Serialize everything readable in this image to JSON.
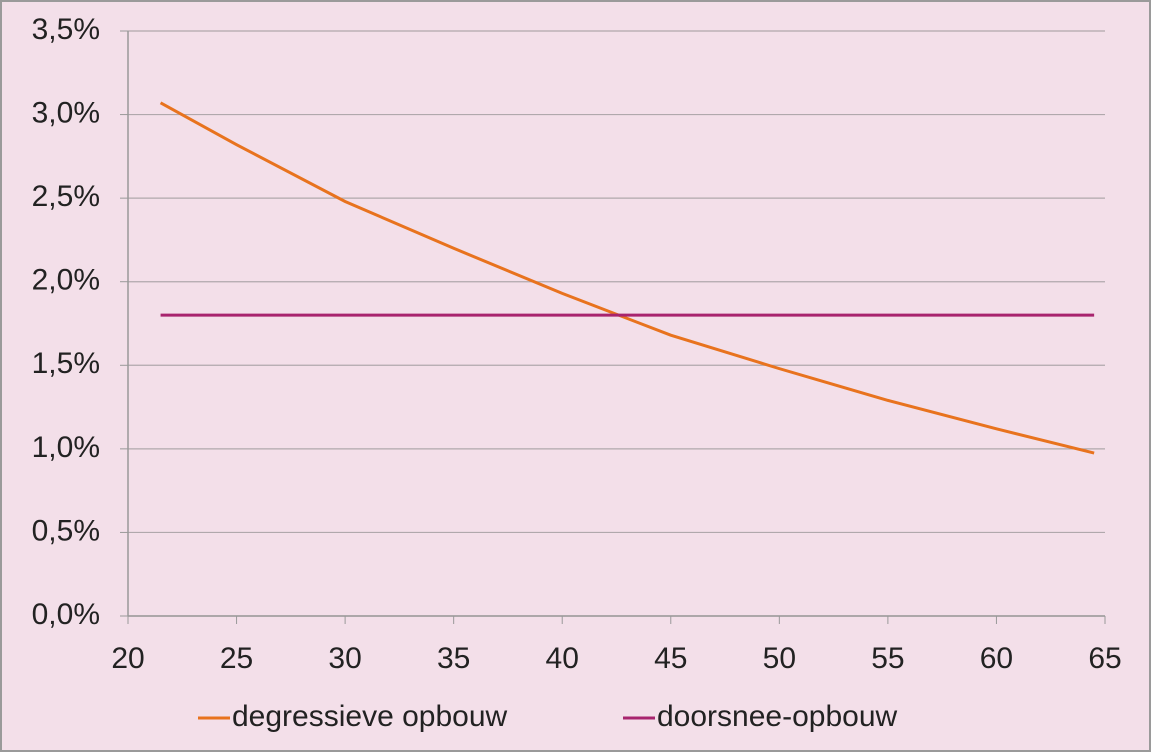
{
  "chart_data": {
    "type": "line",
    "x": [
      21.5,
      25,
      30,
      35,
      40,
      45,
      50,
      55,
      60,
      64.5
    ],
    "series": [
      {
        "name": "degressieve opbouw",
        "color": "#e8731e",
        "values": [
          3.07,
          2.82,
          2.48,
          2.2,
          1.93,
          1.68,
          1.48,
          1.29,
          1.12,
          0.975
        ]
      },
      {
        "name": "doorsnee-opbouw",
        "color": "#a8246e",
        "values": [
          1.8,
          1.8,
          1.8,
          1.8,
          1.8,
          1.8,
          1.8,
          1.8,
          1.8,
          1.8
        ]
      }
    ],
    "xlim": [
      20,
      65
    ],
    "xticks": [
      20,
      25,
      30,
      35,
      40,
      45,
      50,
      55,
      60,
      65
    ],
    "ylim": [
      0,
      3.5
    ],
    "yticks": [
      {
        "value": 0,
        "label": "0,0%"
      },
      {
        "value": 0.5,
        "label": "0,5%"
      },
      {
        "value": 1,
        "label": "1,0%"
      },
      {
        "value": 1.5,
        "label": "1,5%"
      },
      {
        "value": 2,
        "label": "2,0%"
      },
      {
        "value": 2.5,
        "label": "2,5%"
      },
      {
        "value": 3,
        "label": "3,0%"
      },
      {
        "value": 3.5,
        "label": "3,5%"
      }
    ],
    "grid": true,
    "legend": "bottom"
  }
}
